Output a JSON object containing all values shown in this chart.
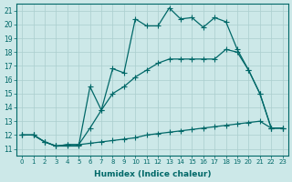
{
  "xlabel": "Humidex (Indice chaleur)",
  "xlim": [
    -0.5,
    23.5
  ],
  "ylim": [
    10.5,
    21.5
  ],
  "yticks": [
    11,
    12,
    13,
    14,
    15,
    16,
    17,
    18,
    19,
    20,
    21
  ],
  "xticks": [
    0,
    1,
    2,
    3,
    4,
    5,
    6,
    7,
    8,
    9,
    10,
    11,
    12,
    13,
    14,
    15,
    16,
    17,
    18,
    19,
    20,
    21,
    22,
    23
  ],
  "bg_color": "#cce8e8",
  "grid_color": "#aacece",
  "line_color": "#006868",
  "line1_x": [
    0,
    1,
    2,
    3,
    4,
    5,
    6,
    7,
    8,
    9,
    10,
    11,
    12,
    13,
    14,
    15,
    16,
    17,
    18,
    19,
    20,
    21,
    22,
    23
  ],
  "line1_y": [
    12.0,
    12.0,
    11.5,
    11.2,
    11.2,
    11.2,
    15.5,
    13.8,
    16.8,
    16.5,
    20.4,
    19.9,
    19.9,
    21.2,
    20.4,
    20.5,
    19.8,
    20.5,
    20.2,
    18.2,
    16.7,
    15.0,
    12.5,
    12.5
  ],
  "line2_x": [
    0,
    1,
    2,
    3,
    4,
    5,
    6,
    7,
    8,
    9,
    10,
    11,
    12,
    13,
    14,
    15,
    16,
    17,
    18,
    19,
    20,
    21,
    22,
    23
  ],
  "line2_y": [
    12.0,
    12.0,
    11.5,
    11.2,
    11.3,
    11.3,
    11.4,
    11.5,
    11.6,
    11.7,
    11.8,
    12.0,
    12.1,
    12.2,
    12.3,
    12.4,
    12.5,
    12.6,
    12.7,
    12.8,
    12.9,
    13.0,
    12.5,
    12.5
  ],
  "line3_x": [
    0,
    1,
    2,
    3,
    4,
    5,
    6,
    7,
    8,
    9,
    10,
    11,
    12,
    13,
    14,
    15,
    16,
    17,
    18,
    19,
    20,
    21,
    22,
    23
  ],
  "line3_y": [
    12.0,
    12.0,
    11.5,
    11.2,
    11.3,
    11.3,
    12.5,
    13.8,
    15.0,
    15.5,
    16.2,
    16.7,
    17.2,
    17.5,
    17.5,
    17.5,
    17.5,
    17.5,
    18.2,
    18.0,
    16.7,
    15.0,
    12.5,
    12.5
  ]
}
